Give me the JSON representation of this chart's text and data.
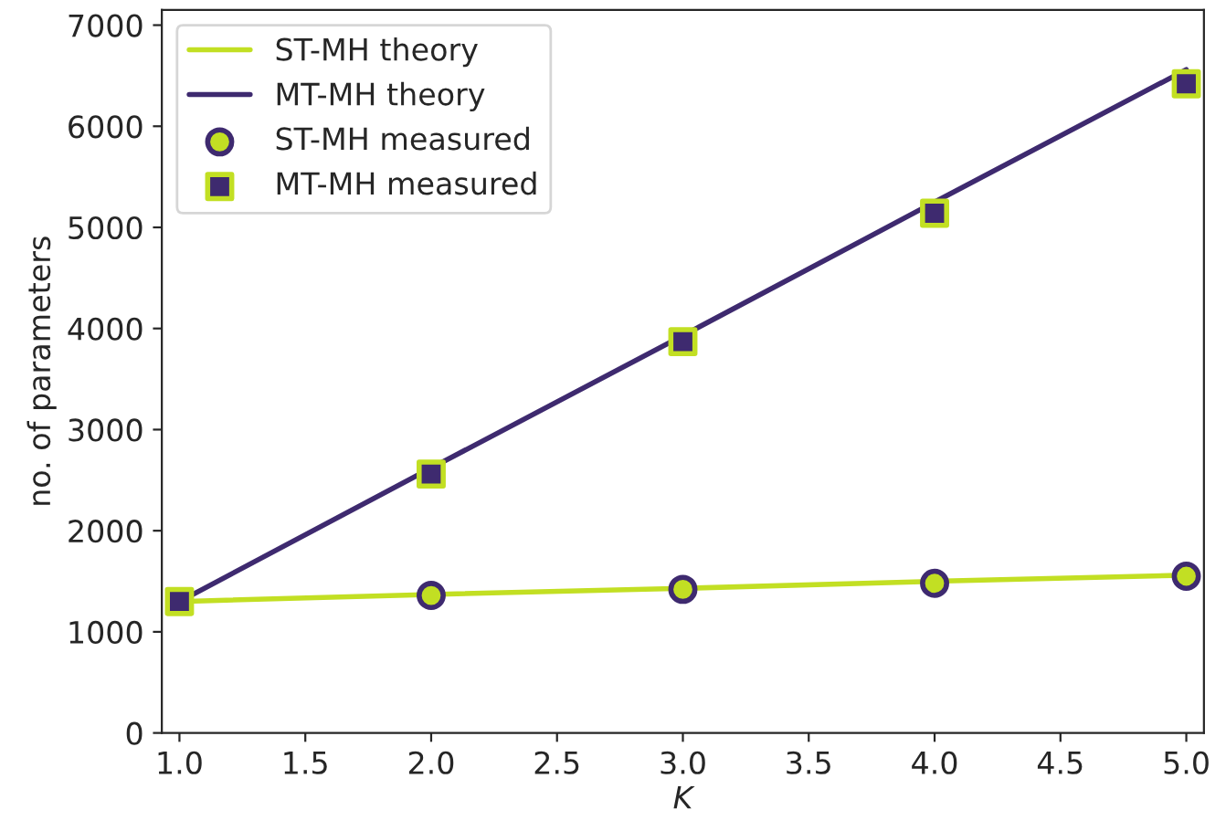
{
  "chart_data": {
    "type": "line",
    "xlabel": "K",
    "ylabel": "no. of parameters",
    "x": [
      1,
      2,
      3,
      4,
      5
    ],
    "series": [
      {
        "name": "ST-MH theory",
        "color": "#c2df23",
        "marker": "none",
        "values": [
          1300,
          1370,
          1430,
          1500,
          1560
        ]
      },
      {
        "name": "MT-MH theory",
        "color": "#3e2a6f",
        "marker": "none",
        "values": [
          1300,
          2620,
          3930,
          5250,
          6560
        ]
      },
      {
        "name": "ST-MH measured",
        "type": "scatter",
        "color": "#c2df23",
        "marker": "circle",
        "values": [
          null,
          1360,
          1420,
          1480,
          1550
        ]
      },
      {
        "name": "MT-MH measured",
        "type": "scatter",
        "color": "#3e2a6f",
        "marker": "square",
        "values": [
          1300,
          2560,
          3870,
          5140,
          6420
        ]
      }
    ],
    "xlim": [
      0.93,
      5.07
    ],
    "ylim": [
      0,
      7150
    ],
    "xticks": [
      {
        "value": 1,
        "label": "1.0"
      },
      {
        "value": 1.5,
        "label": "1.5"
      },
      {
        "value": 2,
        "label": "2.0"
      },
      {
        "value": 2.5,
        "label": "2.5"
      },
      {
        "value": 3,
        "label": "3.0"
      },
      {
        "value": 3.5,
        "label": "3.5"
      },
      {
        "value": 4,
        "label": "4.0"
      },
      {
        "value": 4.5,
        "label": "4.5"
      },
      {
        "value": 5,
        "label": "5.0"
      }
    ],
    "yticks": [
      0,
      1000,
      2000,
      3000,
      4000,
      5000,
      6000,
      7000
    ],
    "legend": "top left",
    "grid": false,
    "line_style": "solid"
  }
}
